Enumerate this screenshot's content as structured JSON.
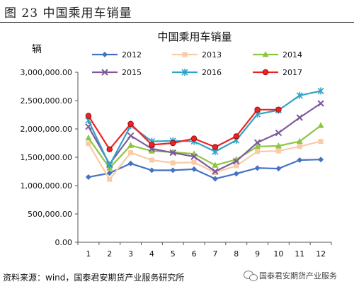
{
  "caption": "图 23 中国乘用车销量",
  "source": "资料来源：wind，国泰君安期货产业服务研究所",
  "watermark": "国泰君安期货产业服务",
  "chart_data": {
    "type": "line",
    "title": "中国乘用车销量",
    "ylabel": "辆",
    "xlabel": "",
    "categories": [
      "1",
      "2",
      "3",
      "4",
      "5",
      "6",
      "7",
      "8",
      "9",
      "10",
      "11",
      "12"
    ],
    "ylim": [
      0,
      3000000
    ],
    "yticks": [
      "0.00",
      "500,000.00",
      "1,000,000.00",
      "1,500,000.00",
      "2,000,000.00",
      "2,500,000.00",
      "3,000,000.00"
    ],
    "ytick_values": [
      0,
      500000,
      1000000,
      1500000,
      2000000,
      2500000,
      3000000
    ],
    "grid": false,
    "legend_position": "top",
    "series": [
      {
        "name": "2012",
        "color": "#4472c4",
        "marker": "diamond",
        "values": [
          1150000,
          1220000,
          1390000,
          1270000,
          1270000,
          1290000,
          1120000,
          1210000,
          1310000,
          1300000,
          1450000,
          1460000
        ]
      },
      {
        "name": "2013",
        "color": "#f9cba7",
        "marker": "square",
        "values": [
          1740000,
          1110000,
          1580000,
          1450000,
          1400000,
          1410000,
          1230000,
          1350000,
          1600000,
          1610000,
          1690000,
          1780000
        ]
      },
      {
        "name": "2014",
        "color": "#8dc63f",
        "marker": "triangle",
        "values": [
          1840000,
          1310000,
          1710000,
          1610000,
          1590000,
          1560000,
          1360000,
          1460000,
          1690000,
          1700000,
          1780000,
          2060000
        ]
      },
      {
        "name": "2015",
        "color": "#7e5a9b",
        "marker": "x",
        "values": [
          2040000,
          1380000,
          1880000,
          1650000,
          1580000,
          1510000,
          1250000,
          1430000,
          1760000,
          1930000,
          2200000,
          2450000
        ]
      },
      {
        "name": "2016",
        "color": "#31a3c6",
        "marker": "star",
        "values": [
          2150000,
          1360000,
          2060000,
          1780000,
          1790000,
          1780000,
          1600000,
          1800000,
          2260000,
          2330000,
          2590000,
          2670000
        ]
      },
      {
        "name": "2017",
        "color": "#ee2222",
        "marker": "circle",
        "values": [
          2230000,
          1640000,
          2090000,
          1720000,
          1750000,
          1830000,
          1680000,
          1870000,
          2340000,
          2340000,
          null,
          null
        ]
      }
    ]
  }
}
